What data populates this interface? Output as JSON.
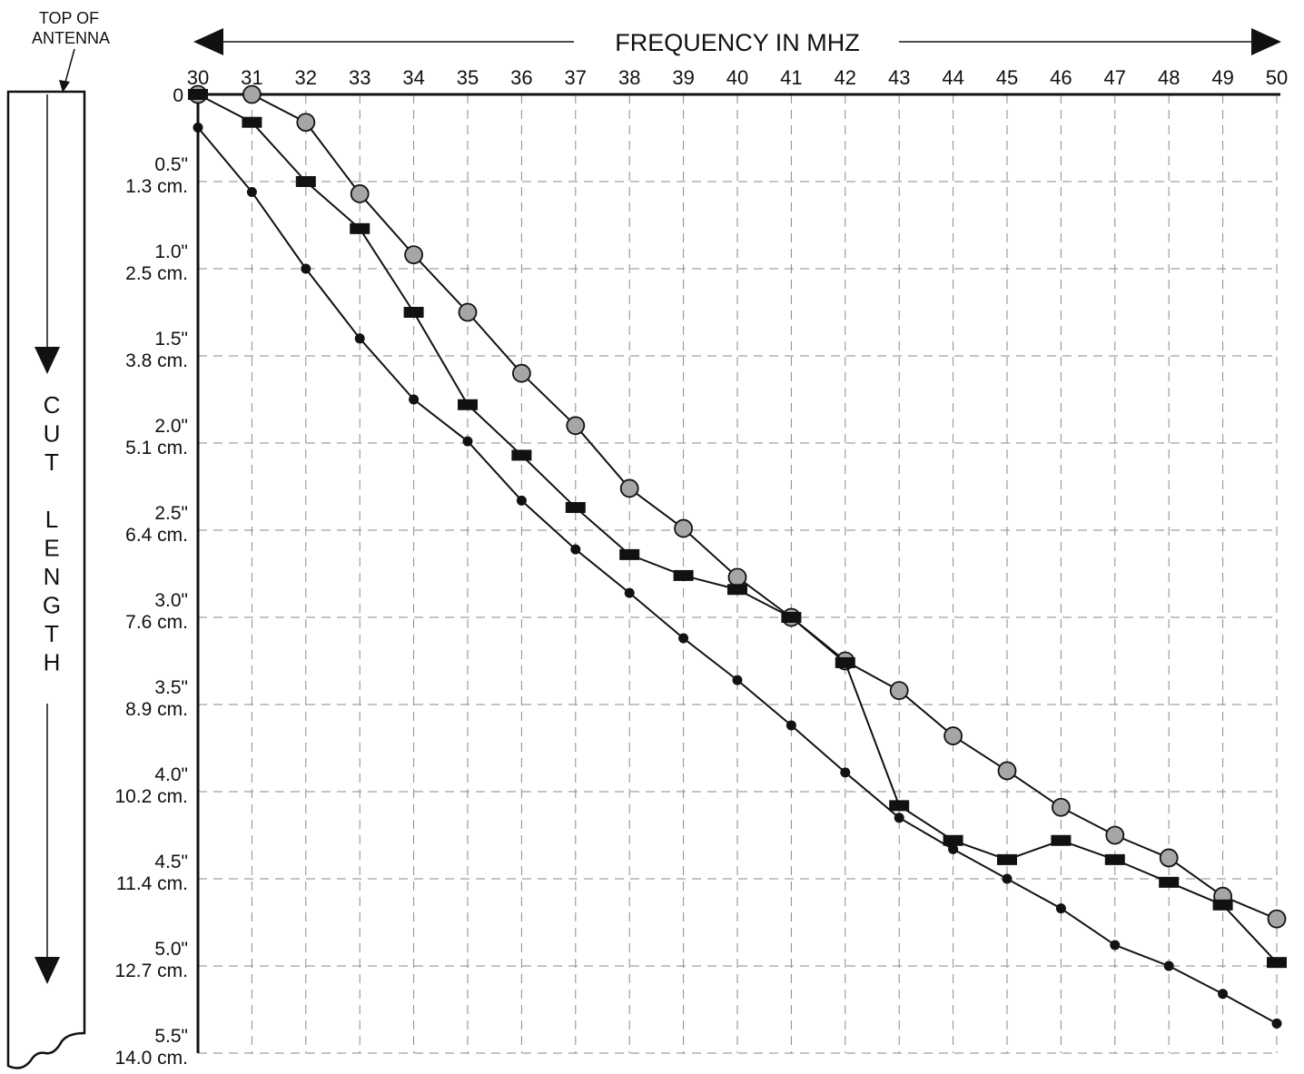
{
  "chart_data": {
    "type": "line",
    "xlabel": "FREQUENCY IN MHZ",
    "ylabel": "CUT LENGTH",
    "corner_label": [
      "TOP OF",
      "ANTENNA"
    ],
    "x_ticks": [
      "30",
      "31",
      "32",
      "33",
      "34",
      "35",
      "36",
      "37",
      "38",
      "39",
      "40",
      "41",
      "42",
      "43",
      "44",
      "45",
      "46",
      "47",
      "48",
      "49",
      "50"
    ],
    "xlim": [
      30,
      50
    ],
    "ylim": [
      0,
      5.5
    ],
    "y_inverted": true,
    "y_ticks": [
      {
        "value": 0,
        "inch": "0",
        "cm": ""
      },
      {
        "value": 0.5,
        "inch": "0.5\"",
        "cm": "1.3 cm."
      },
      {
        "value": 1.0,
        "inch": "1.0\"",
        "cm": "2.5 cm."
      },
      {
        "value": 1.5,
        "inch": "1.5\"",
        "cm": "3.8 cm."
      },
      {
        "value": 2.0,
        "inch": "2.0\"",
        "cm": "5.1 cm."
      },
      {
        "value": 2.5,
        "inch": "2.5\"",
        "cm": "6.4 cm."
      },
      {
        "value": 3.0,
        "inch": "3.0\"",
        "cm": "7.6 cm."
      },
      {
        "value": 3.5,
        "inch": "3.5\"",
        "cm": "8.9 cm."
      },
      {
        "value": 4.0,
        "inch": "4.0\"",
        "cm": "10.2 cm."
      },
      {
        "value": 4.5,
        "inch": "4.5\"",
        "cm": "11.4 cm."
      },
      {
        "value": 5.0,
        "inch": "5.0\"",
        "cm": "12.7 cm."
      },
      {
        "value": 5.5,
        "inch": "5.5\"",
        "cm": "14.0 cm."
      }
    ],
    "grid": true,
    "x": [
      30,
      31,
      32,
      33,
      34,
      35,
      36,
      37,
      38,
      39,
      40,
      41,
      42,
      43,
      44,
      45,
      46,
      47,
      48,
      49,
      50
    ],
    "series": [
      {
        "marker": "circle-gray",
        "values": [
          0.0,
          0.0,
          0.16,
          0.57,
          0.92,
          1.25,
          1.6,
          1.9,
          2.26,
          2.49,
          2.77,
          3.0,
          3.25,
          3.42,
          3.68,
          3.88,
          4.09,
          4.25,
          4.38,
          4.6,
          4.73
        ]
      },
      {
        "marker": "rect-black",
        "values": [
          0.0,
          0.16,
          0.5,
          0.77,
          1.25,
          1.78,
          2.07,
          2.37,
          2.64,
          2.76,
          2.84,
          3.0,
          3.26,
          4.08,
          4.28,
          4.39,
          4.28,
          4.39,
          4.52,
          4.65,
          4.98
        ]
      },
      {
        "marker": "dot-black",
        "values": [
          0.19,
          0.56,
          1.0,
          1.4,
          1.75,
          1.99,
          2.33,
          2.61,
          2.86,
          3.12,
          3.36,
          3.62,
          3.89,
          4.15,
          4.33,
          4.5,
          4.67,
          4.88,
          5.0,
          5.16,
          5.33
        ]
      }
    ]
  }
}
